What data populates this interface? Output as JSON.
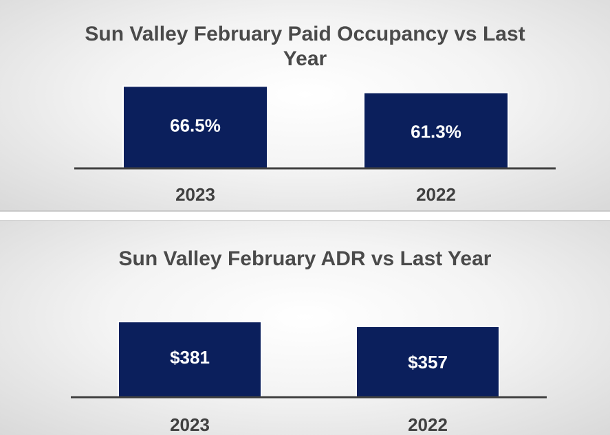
{
  "chart_data": [
    {
      "type": "bar",
      "title": "Sun Valley February Paid Occupancy vs Last Year",
      "categories": [
        "2023",
        "2022"
      ],
      "values": [
        66.5,
        61.3
      ],
      "value_labels": [
        "66.5%",
        "61.3%"
      ],
      "xlabel": "",
      "ylabel": "",
      "ylim": [
        0,
        70
      ],
      "bar_color": "#0b1f5c",
      "grid": false
    },
    {
      "type": "bar",
      "title": "Sun Valley February ADR vs Last Year",
      "categories": [
        "2023",
        "2022"
      ],
      "values": [
        381,
        357
      ],
      "value_labels": [
        "$381",
        "$357"
      ],
      "xlabel": "",
      "ylabel": "",
      "ylim": [
        0,
        400
      ],
      "bar_color": "#0b1f5c",
      "grid": false
    }
  ]
}
